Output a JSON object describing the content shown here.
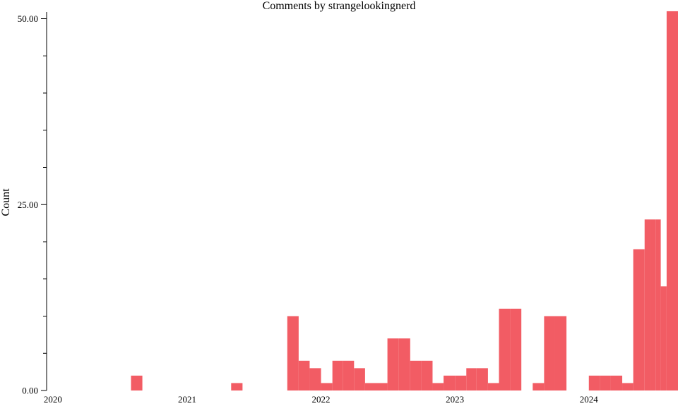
{
  "chart_data": {
    "type": "bar",
    "title": "Comments by strangelookingnerd",
    "xlabel": "",
    "ylabel": "Count",
    "x_tick_labels": [
      "2020",
      "2021",
      "2022",
      "2023",
      "2024"
    ],
    "y_tick_labels": [
      "0.00",
      "25.00",
      "50.00"
    ],
    "y_ticks": [
      0,
      25,
      50
    ],
    "ylim": [
      0,
      50.9
    ],
    "xlim": [
      "2019-12-15",
      "2024-08-31"
    ],
    "grid": false,
    "bar_color": "#f25c64",
    "series": [
      {
        "bars": [
          {
            "start": "2020-08-01",
            "end": "2020-09-01",
            "value": 2
          },
          {
            "start": "2021-05-01",
            "end": "2021-06-01",
            "value": 1
          },
          {
            "start": "2021-10-01",
            "end": "2021-11-01",
            "value": 10
          },
          {
            "start": "2021-11-01",
            "end": "2021-12-01",
            "value": 4
          },
          {
            "start": "2021-12-01",
            "end": "2022-01-01",
            "value": 3
          },
          {
            "start": "2022-01-01",
            "end": "2022-02-01",
            "value": 1
          },
          {
            "start": "2022-02-01",
            "end": "2022-03-01",
            "value": 4
          },
          {
            "start": "2022-03-01",
            "end": "2022-04-01",
            "value": 4
          },
          {
            "start": "2022-04-01",
            "end": "2022-05-01",
            "value": 3
          },
          {
            "start": "2022-05-01",
            "end": "2022-06-01",
            "value": 1
          },
          {
            "start": "2022-06-01",
            "end": "2022-07-01",
            "value": 1
          },
          {
            "start": "2022-07-01",
            "end": "2022-08-01",
            "value": 7
          },
          {
            "start": "2022-08-01",
            "end": "2022-09-01",
            "value": 7
          },
          {
            "start": "2022-09-01",
            "end": "2022-10-01",
            "value": 4
          },
          {
            "start": "2022-10-01",
            "end": "2022-11-01",
            "value": 4
          },
          {
            "start": "2022-11-01",
            "end": "2022-12-01",
            "value": 1
          },
          {
            "start": "2022-12-01",
            "end": "2023-01-01",
            "value": 2
          },
          {
            "start": "2023-01-01",
            "end": "2023-02-01",
            "value": 2
          },
          {
            "start": "2023-02-01",
            "end": "2023-03-01",
            "value": 3
          },
          {
            "start": "2023-03-01",
            "end": "2023-04-01",
            "value": 3
          },
          {
            "start": "2023-04-01",
            "end": "2023-05-01",
            "value": 1
          },
          {
            "start": "2023-05-01",
            "end": "2023-06-01",
            "value": 11
          },
          {
            "start": "2023-06-01",
            "end": "2023-07-01",
            "value": 11
          },
          {
            "start": "2023-08-01",
            "end": "2023-09-01",
            "value": 1
          },
          {
            "start": "2023-09-01",
            "end": "2023-10-01",
            "value": 10
          },
          {
            "start": "2023-10-01",
            "end": "2023-11-01",
            "value": 10
          },
          {
            "start": "2024-01-01",
            "end": "2024-02-01",
            "value": 2
          },
          {
            "start": "2024-02-01",
            "end": "2024-03-01",
            "value": 2
          },
          {
            "start": "2024-03-01",
            "end": "2024-04-01",
            "value": 2
          },
          {
            "start": "2024-04-01",
            "end": "2024-05-01",
            "value": 1
          },
          {
            "start": "2024-05-01",
            "end": "2024-06-01",
            "value": 19
          },
          {
            "start": "2024-06-01",
            "end": "2024-06-16",
            "value": 23
          },
          {
            "start": "2024-06-16",
            "end": "2024-07-01",
            "value": 23
          },
          {
            "start": "2024-07-01",
            "end": "2024-07-15",
            "value": 23
          },
          {
            "start": "2024-07-15",
            "end": "2024-07-31",
            "value": 14
          },
          {
            "start": "2024-07-31",
            "end": "2024-08-31",
            "value": 51
          }
        ]
      }
    ]
  }
}
